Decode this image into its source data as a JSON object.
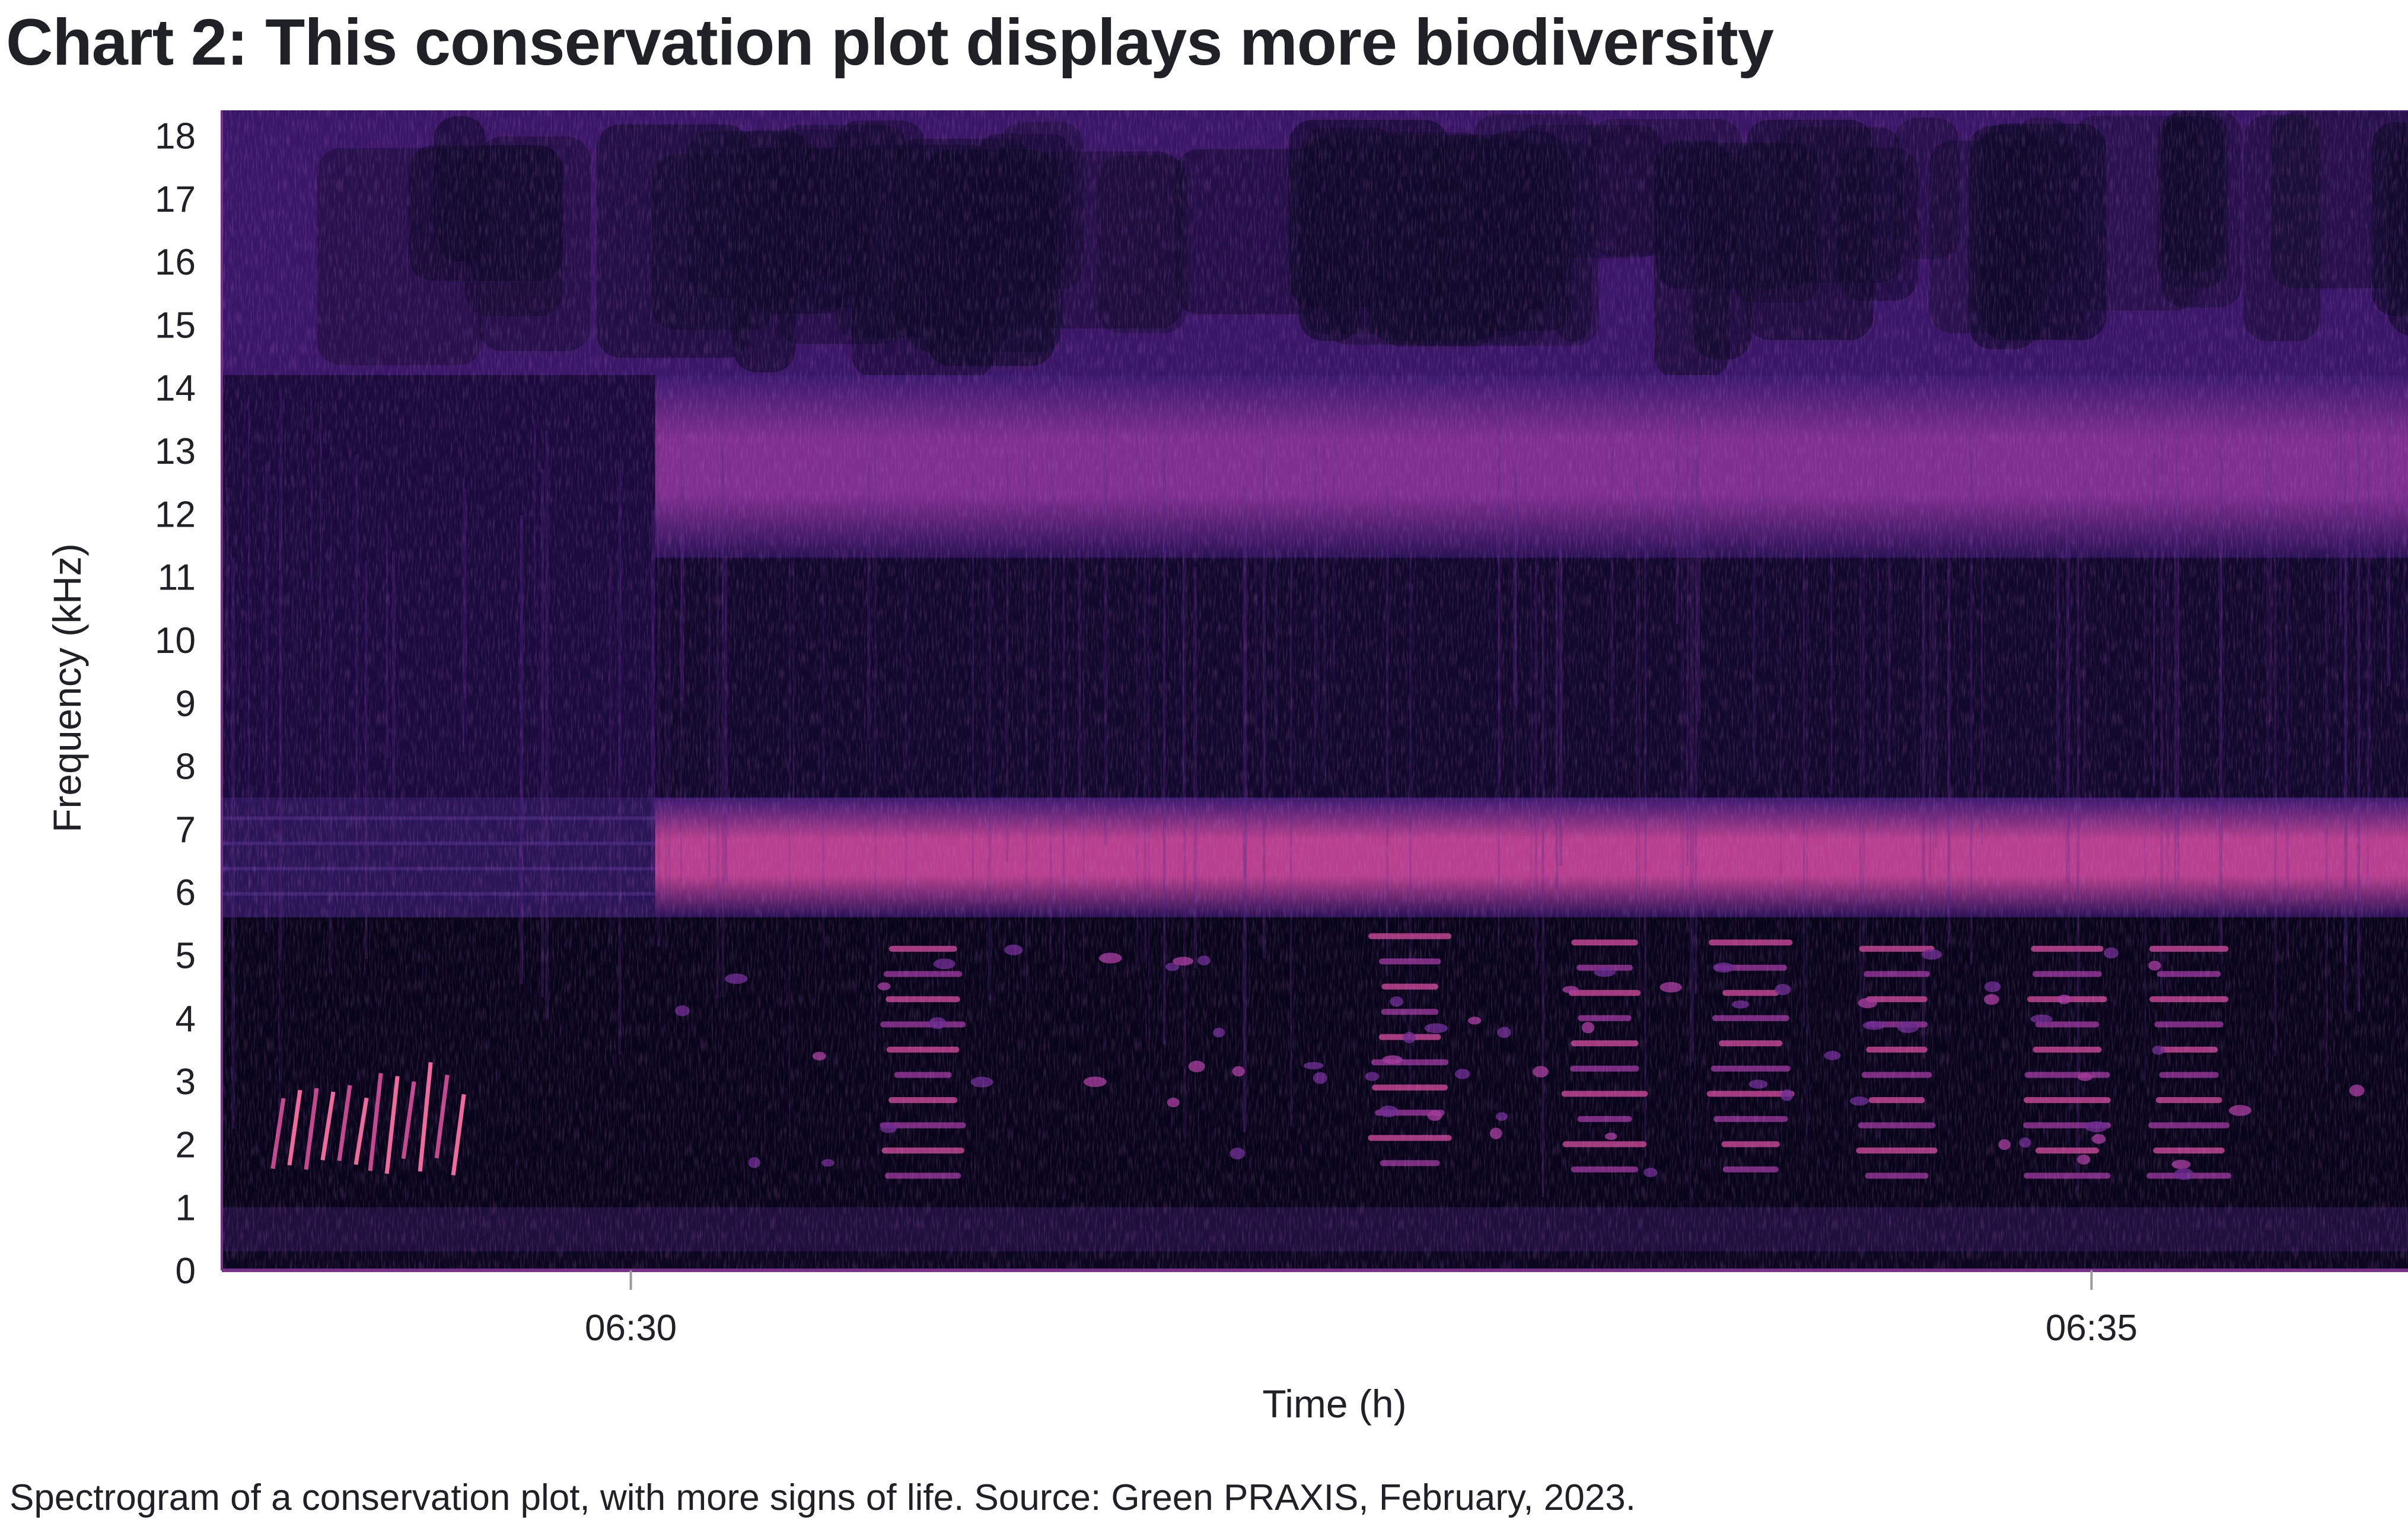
{
  "title": "Chart 2: This conservation plot displays more biodiversity",
  "caption": "Spectrogram of a conservation plot, with more signs of life. Source: Green PRAXIS, February, 2023.",
  "chart_data": {
    "type": "heatmap",
    "subtype": "spectrogram",
    "xlabel": "Time (h)",
    "ylabel": "Frequency (kHz)",
    "ylim": [
      0,
      18.4
    ],
    "yticks": [
      "0",
      "1",
      "2",
      "3",
      "4",
      "5",
      "6",
      "7",
      "8",
      "9",
      "10",
      "11",
      "12",
      "13",
      "14",
      "15",
      "16",
      "17",
      "18"
    ],
    "xlim": [
      "06:28:36",
      "06:36:05"
    ],
    "xticks": [
      "06:30",
      "06:35"
    ],
    "grid": false,
    "colormap": [
      "#07051a",
      "#241046",
      "#4a1d74",
      "#7f2f8e",
      "#b8408e",
      "#f0609a"
    ],
    "bands": [
      {
        "name": "persistent band",
        "ymin": 5.6,
        "ymax": 7.5,
        "intensity": 0.62
      },
      {
        "name": "persistent band",
        "ymin": 11.3,
        "ymax": 14.2,
        "intensity": 0.55
      }
    ],
    "bird_call_segments": [
      {
        "t": "06:28:55",
        "freq_range": [
          1.5,
          3.2
        ]
      },
      {
        "t": "06:29:15",
        "freq_range": [
          1.5,
          3.3
        ]
      },
      {
        "t": "06:31:00",
        "freq_range": [
          1.5,
          5.2
        ]
      },
      {
        "t": "06:32:40",
        "freq_range": [
          1.7,
          5.3
        ]
      },
      {
        "t": "06:33:20",
        "freq_range": [
          1.6,
          5.3
        ]
      },
      {
        "t": "06:33:50",
        "freq_range": [
          1.6,
          5.3
        ]
      },
      {
        "t": "06:34:20",
        "freq_range": [
          1.5,
          5.3
        ]
      },
      {
        "t": "06:34:55",
        "freq_range": [
          1.5,
          5.3
        ]
      },
      {
        "t": "06:35:20",
        "freq_range": [
          1.5,
          5.3
        ]
      }
    ]
  }
}
